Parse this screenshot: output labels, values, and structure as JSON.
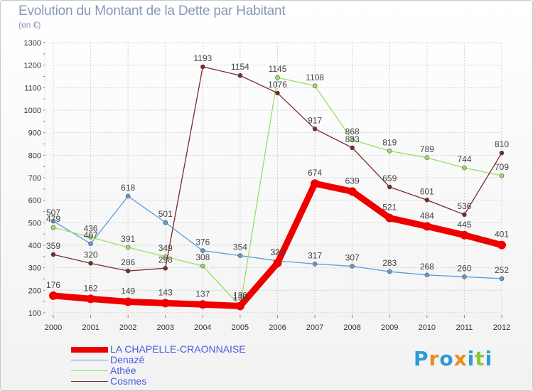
{
  "chart_data": {
    "type": "line",
    "title": "Evolution du Montant de la Dette par Habitant",
    "subtitle": "(en €)",
    "x": [
      "2000",
      "2001",
      "2002",
      "2003",
      "2004",
      "2005",
      "2006",
      "2007",
      "2008",
      "2009",
      "2010",
      "2011",
      "2012"
    ],
    "ylim": [
      100,
      1300
    ],
    "yticks": [
      100,
      200,
      300,
      400,
      500,
      600,
      700,
      800,
      900,
      1000,
      1100,
      1200,
      1300
    ],
    "grid": true,
    "legend_position": "bottom-left",
    "series": [
      {
        "name": "Denazé",
        "color": "#5b9bd5",
        "values": [
          507,
          407,
          618,
          501,
          376,
          354,
          331,
          317,
          307,
          283,
          268,
          260,
          252
        ]
      },
      {
        "name": "Athée",
        "color": "#99e060",
        "values": [
          479,
          436,
          391,
          349,
          308,
          130,
          1145,
          1108,
          868,
          819,
          789,
          744,
          709
        ]
      },
      {
        "name": "Cosmes",
        "color": "#7b2a2a",
        "values": [
          359,
          320,
          286,
          298,
          1193,
          1154,
          1076,
          917,
          833,
          659,
          601,
          536,
          810
        ]
      },
      {
        "name": "LA CHAPELLE-CRAONNAISE",
        "color": "#ee0000",
        "values": [
          176,
          162,
          149,
          143,
          137,
          130,
          321,
          674,
          639,
          521,
          484,
          445,
          401
        ]
      }
    ],
    "legend": [
      "LA CHAPELLE-CRAONNAISE",
      "Denazé",
      "Athée",
      "Cosmes"
    ]
  },
  "brand": {
    "letters": [
      "P",
      "r",
      "o",
      "x",
      "i",
      "t",
      "i"
    ],
    "colors": [
      "#2e9ad6",
      "#f08a1c",
      "#2e9ad6",
      "#f08a1c",
      "#2e9ad6",
      "#8bc53f",
      "#2e9ad6"
    ]
  }
}
